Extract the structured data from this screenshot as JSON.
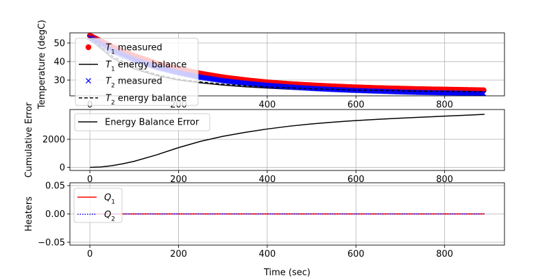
{
  "chart_data": [
    {
      "type": "line",
      "ylabel": "Temperature (degC)",
      "xlabel": "",
      "xlim": [
        -45,
        935
      ],
      "ylim": [
        21.5,
        55.5
      ],
      "grid": true,
      "xticks": [
        0,
        200,
        400,
        600,
        800
      ],
      "xtick_labels": [
        "0",
        "200",
        "400",
        "600",
        "800"
      ],
      "yticks": [
        30,
        40,
        50
      ],
      "ytick_labels": [
        "30",
        "40",
        "50"
      ],
      "legend_position": "upper left",
      "series": [
        {
          "name": "$T_1$ measured",
          "name_base": "T",
          "name_sub": "1",
          "name_rest": " measured",
          "color": "#ff0000",
          "style": "marker-o",
          "x": [
            0,
            50,
            100,
            150,
            200,
            250,
            300,
            350,
            400,
            450,
            500,
            550,
            600,
            650,
            700,
            750,
            800,
            850,
            890
          ],
          "y": [
            54,
            48,
            43,
            39,
            36,
            33.5,
            31.5,
            30,
            28.8,
            27.9,
            27.2,
            26.6,
            26.1,
            25.7,
            25.4,
            25.1,
            24.9,
            24.7,
            24.5
          ]
        },
        {
          "name": "$T_1$ energy balance",
          "name_base": "T",
          "name_sub": "1",
          "name_rest": " energy balance",
          "color": "#000000",
          "style": "solid",
          "x": [
            0,
            50,
            100,
            150,
            200,
            250,
            300,
            350,
            400,
            450,
            500,
            550,
            600,
            650,
            700,
            750,
            800,
            850,
            890
          ],
          "y": [
            52,
            42,
            36,
            32.5,
            30,
            28.5,
            27.3,
            26.4,
            25.7,
            25.1,
            24.6,
            24.2,
            23.9,
            23.6,
            23.4,
            23.2,
            23.1,
            23,
            22.9
          ]
        },
        {
          "name": "$T_2$ measured",
          "name_base": "T",
          "name_sub": "2",
          "name_rest": " measured",
          "color": "#0000ff",
          "style": "marker-x",
          "x": [
            0,
            50,
            100,
            150,
            200,
            250,
            300,
            350,
            400,
            450,
            500,
            550,
            600,
            650,
            700,
            750,
            800,
            850,
            890
          ],
          "y": [
            53,
            46,
            41,
            37,
            34,
            31.5,
            29.7,
            28.3,
            27.2,
            26.3,
            25.5,
            24.9,
            24.4,
            24,
            23.6,
            23.3,
            23.1,
            22.9,
            22.7
          ]
        },
        {
          "name": "$T_2$ energy balance",
          "name_base": "T",
          "name_sub": "2",
          "name_rest": " energy balance",
          "color": "#000000",
          "style": "dashed",
          "x": [
            0,
            50,
            100,
            150,
            200,
            250,
            300,
            350,
            400,
            450,
            500,
            550,
            600,
            650,
            700,
            750,
            800,
            850,
            890
          ],
          "y": [
            53,
            43,
            37,
            33,
            30.5,
            29,
            27.8,
            27,
            26.3,
            25.8,
            25.3,
            25,
            24.6,
            24.4,
            24.2,
            24,
            23.9,
            23.8,
            23.7
          ]
        }
      ]
    },
    {
      "type": "line",
      "ylabel": "Cumulative Error",
      "xlabel": "",
      "xlim": [
        -45,
        935
      ],
      "ylim": [
        -220,
        4100
      ],
      "grid": true,
      "xticks": [
        0,
        200,
        400,
        600,
        800
      ],
      "xtick_labels": [
        "0",
        "200",
        "400",
        "600",
        "800"
      ],
      "yticks": [
        0,
        2000
      ],
      "ytick_labels": [
        "0",
        "2000"
      ],
      "legend_position": "upper left",
      "series": [
        {
          "name": "Energy Balance Error",
          "color": "#000000",
          "style": "solid",
          "x": [
            0,
            25,
            50,
            75,
            100,
            150,
            200,
            250,
            300,
            350,
            400,
            450,
            500,
            550,
            600,
            650,
            700,
            750,
            800,
            850,
            890
          ],
          "y": [
            0,
            30,
            120,
            260,
            430,
            880,
            1400,
            1850,
            2200,
            2480,
            2720,
            2920,
            3080,
            3210,
            3320,
            3410,
            3490,
            3560,
            3630,
            3700,
            3760
          ]
        }
      ]
    },
    {
      "type": "line",
      "ylabel": "Heaters",
      "xlabel": "Time (sec)",
      "xlim": [
        -45,
        935
      ],
      "ylim": [
        -0.055,
        0.055
      ],
      "grid": true,
      "xticks": [
        0,
        200,
        400,
        600,
        800
      ],
      "xtick_labels": [
        "0",
        "200",
        "400",
        "600",
        "800"
      ],
      "yticks": [
        -0.05,
        0,
        0.05
      ],
      "ytick_labels": [
        "−0.05",
        "0.00",
        "0.05"
      ],
      "legend_position": "upper left",
      "series": [
        {
          "name": "$Q_1$",
          "name_base": "Q",
          "name_sub": "1",
          "name_rest": "",
          "color": "#ff0000",
          "style": "solid",
          "x": [
            0,
            890
          ],
          "y": [
            0,
            0
          ]
        },
        {
          "name": "$Q_2$",
          "name_base": "Q",
          "name_sub": "2",
          "name_rest": "",
          "color": "#0000ff",
          "style": "dotted",
          "x": [
            0,
            890
          ],
          "y": [
            0,
            0
          ]
        }
      ]
    }
  ]
}
